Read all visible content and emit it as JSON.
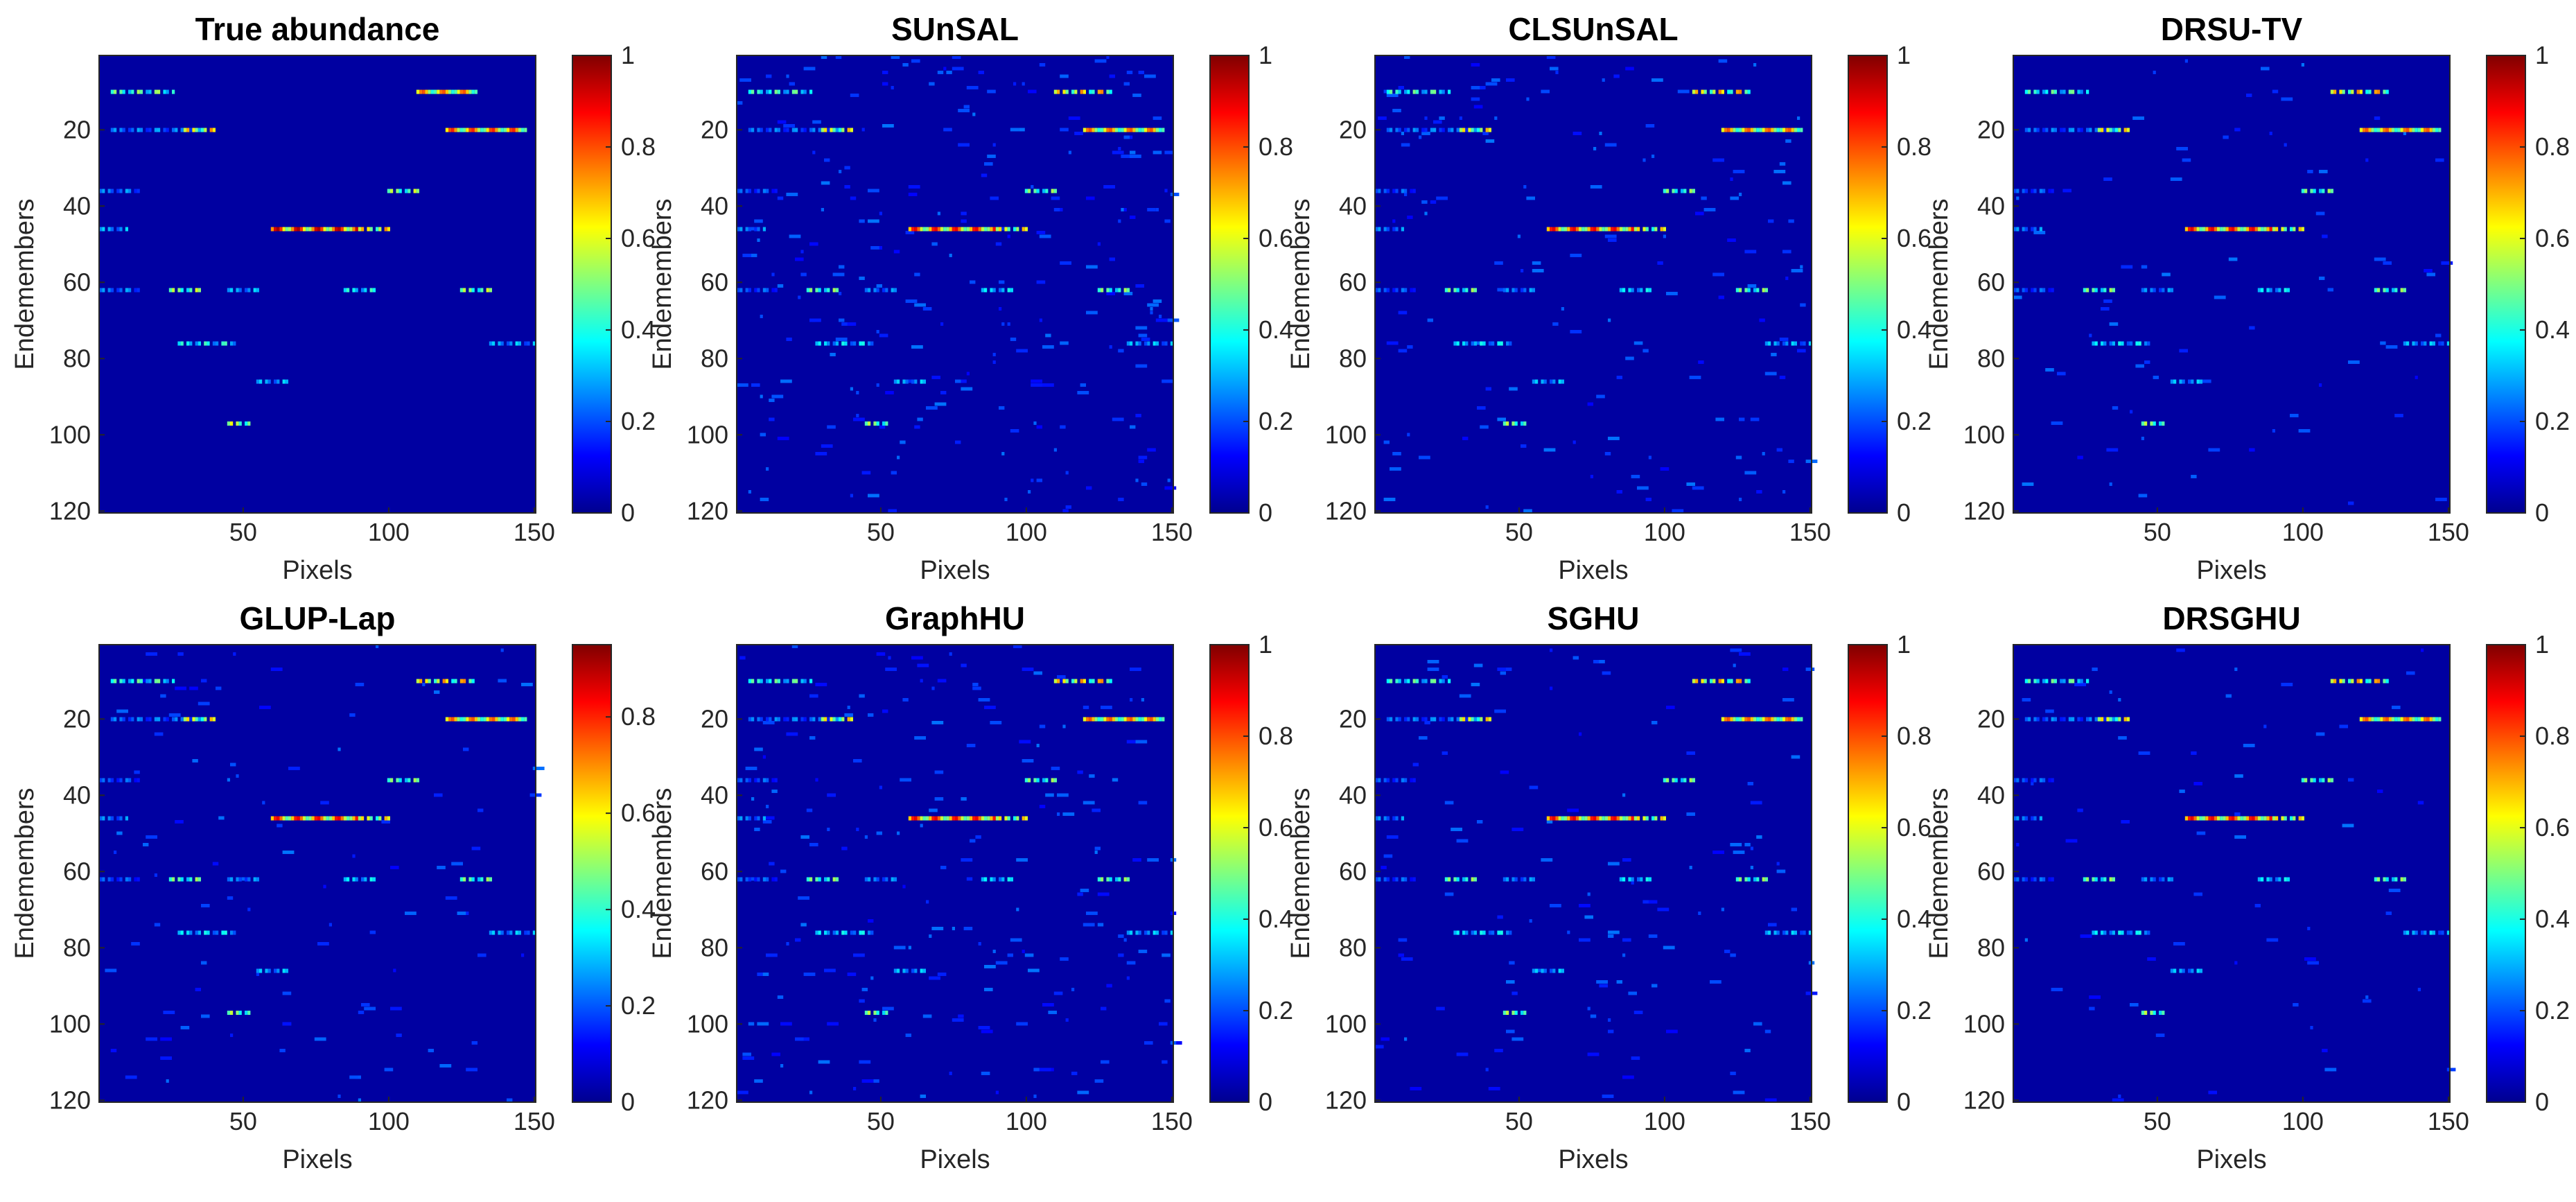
{
  "colors": {
    "background": "#000080",
    "colormap": "jet",
    "jet_stops": [
      "#00008f",
      "#0000ff",
      "#00ffff",
      "#ffff00",
      "#ff0000",
      "#800000"
    ]
  },
  "chart_data": [
    {
      "type": "heatmap",
      "title": "True abundance",
      "xlabel": "Pixels",
      "ylabel": "Endemembers",
      "xlim": [
        1,
        150
      ],
      "ylim": [
        1,
        120
      ],
      "xticks": [
        "50",
        "100",
        "150"
      ],
      "yticks": [
        "20",
        "40",
        "60",
        "80",
        "100",
        "120"
      ],
      "clim": [
        0,
        1
      ],
      "colorbar_ticks": [
        "0",
        "0.2",
        "0.4",
        "0.6",
        "0.8",
        "1"
      ],
      "segments": [
        [
          10,
          5,
          26,
          0.55
        ],
        [
          10,
          110,
          130,
          0.8
        ],
        [
          20,
          5,
          35,
          0.3
        ],
        [
          20,
          30,
          40,
          0.75
        ],
        [
          20,
          120,
          147,
          0.85
        ],
        [
          36,
          1,
          15,
          0.3
        ],
        [
          36,
          100,
          110,
          0.6
        ],
        [
          46,
          1,
          10,
          0.35
        ],
        [
          46,
          60,
          90,
          0.97
        ],
        [
          46,
          90,
          100,
          0.75
        ],
        [
          62,
          1,
          15,
          0.3
        ],
        [
          62,
          25,
          35,
          0.6
        ],
        [
          62,
          45,
          55,
          0.35
        ],
        [
          62,
          85,
          95,
          0.45
        ],
        [
          62,
          125,
          135,
          0.6
        ],
        [
          76,
          28,
          48,
          0.45
        ],
        [
          76,
          135,
          150,
          0.35
        ],
        [
          86,
          55,
          65,
          0.35
        ],
        [
          97,
          45,
          52,
          0.65
        ]
      ]
    },
    {
      "type": "heatmap",
      "title": "SUnSAL",
      "xlabel": "Pixels",
      "ylabel": "Endemembers",
      "xlim": [
        1,
        150
      ],
      "ylim": [
        1,
        120
      ],
      "xticks": [
        "50",
        "100",
        "150"
      ],
      "yticks": [
        "20",
        "40",
        "60",
        "80",
        "100",
        "120"
      ],
      "clim": [
        0,
        1
      ],
      "colorbar_ticks": [
        "0",
        "0.2",
        "0.4",
        "0.6",
        "0.8",
        "1"
      ],
      "segments": [
        [
          10,
          5,
          26,
          0.5
        ],
        [
          10,
          110,
          130,
          0.75
        ],
        [
          20,
          5,
          35,
          0.28
        ],
        [
          20,
          30,
          40,
          0.7
        ],
        [
          20,
          120,
          147,
          0.8
        ],
        [
          36,
          1,
          15,
          0.25
        ],
        [
          36,
          100,
          110,
          0.55
        ],
        [
          46,
          1,
          10,
          0.3
        ],
        [
          46,
          60,
          90,
          0.9
        ],
        [
          46,
          90,
          100,
          0.7
        ],
        [
          62,
          1,
          15,
          0.25
        ],
        [
          62,
          25,
          35,
          0.55
        ],
        [
          62,
          45,
          55,
          0.3
        ],
        [
          62,
          85,
          95,
          0.4
        ],
        [
          62,
          125,
          135,
          0.55
        ],
        [
          76,
          28,
          48,
          0.4
        ],
        [
          76,
          135,
          150,
          0.35
        ],
        [
          86,
          55,
          65,
          0.35
        ],
        [
          97,
          45,
          52,
          0.6
        ]
      ],
      "noise": 1.0
    },
    {
      "type": "heatmap",
      "title": "CLSUnSAL",
      "xlabel": "Pixels",
      "ylabel": "Endemembers",
      "xlim": [
        1,
        150
      ],
      "ylim": [
        1,
        120
      ],
      "xticks": [
        "50",
        "100",
        "150"
      ],
      "yticks": [
        "20",
        "40",
        "60",
        "80",
        "100",
        "120"
      ],
      "clim": [
        0,
        1
      ],
      "colorbar_ticks": [
        "0",
        "0.2",
        "0.4",
        "0.6",
        "0.8",
        "1"
      ],
      "segments": [
        [
          10,
          5,
          26,
          0.5
        ],
        [
          10,
          110,
          130,
          0.75
        ],
        [
          20,
          5,
          35,
          0.28
        ],
        [
          20,
          30,
          40,
          0.7
        ],
        [
          20,
          120,
          147,
          0.8
        ],
        [
          36,
          1,
          15,
          0.25
        ],
        [
          36,
          100,
          110,
          0.55
        ],
        [
          46,
          1,
          10,
          0.3
        ],
        [
          46,
          60,
          90,
          0.9
        ],
        [
          46,
          90,
          100,
          0.7
        ],
        [
          62,
          1,
          15,
          0.25
        ],
        [
          62,
          25,
          35,
          0.55
        ],
        [
          62,
          45,
          55,
          0.3
        ],
        [
          62,
          85,
          95,
          0.4
        ],
        [
          62,
          125,
          135,
          0.55
        ],
        [
          76,
          28,
          48,
          0.4
        ],
        [
          76,
          135,
          150,
          0.35
        ],
        [
          86,
          55,
          65,
          0.35
        ],
        [
          97,
          45,
          52,
          0.6
        ]
      ],
      "noise": 0.6
    },
    {
      "type": "heatmap",
      "title": "DRSU-TV",
      "xlabel": "Pixels",
      "ylabel": "Endemembers",
      "xlim": [
        1,
        150
      ],
      "ylim": [
        1,
        120
      ],
      "xticks": [
        "50",
        "100",
        "150"
      ],
      "yticks": [
        "20",
        "40",
        "60",
        "80",
        "100",
        "120"
      ],
      "clim": [
        0,
        1
      ],
      "colorbar_ticks": [
        "0",
        "0.2",
        "0.4",
        "0.6",
        "0.8",
        "1"
      ],
      "segments": [
        [
          10,
          5,
          26,
          0.5
        ],
        [
          10,
          110,
          130,
          0.75
        ],
        [
          20,
          5,
          35,
          0.28
        ],
        [
          20,
          30,
          40,
          0.7
        ],
        [
          20,
          120,
          147,
          0.8
        ],
        [
          36,
          1,
          15,
          0.25
        ],
        [
          36,
          100,
          110,
          0.55
        ],
        [
          46,
          1,
          10,
          0.3
        ],
        [
          46,
          60,
          90,
          0.9
        ],
        [
          46,
          90,
          100,
          0.7
        ],
        [
          62,
          1,
          15,
          0.25
        ],
        [
          62,
          25,
          35,
          0.55
        ],
        [
          62,
          45,
          55,
          0.3
        ],
        [
          62,
          85,
          95,
          0.4
        ],
        [
          62,
          125,
          135,
          0.55
        ],
        [
          76,
          28,
          48,
          0.4
        ],
        [
          76,
          135,
          150,
          0.35
        ],
        [
          86,
          55,
          65,
          0.35
        ],
        [
          97,
          45,
          52,
          0.6
        ]
      ],
      "noise": 0.3
    },
    {
      "type": "heatmap",
      "title": "GLUP-Lap",
      "xlabel": "Pixels",
      "ylabel": "Endemembers",
      "xlim": [
        1,
        150
      ],
      "ylim": [
        1,
        120
      ],
      "xticks": [
        "50",
        "100",
        "150"
      ],
      "yticks": [
        "20",
        "40",
        "60",
        "80",
        "100",
        "120"
      ],
      "clim": [
        0,
        0.95
      ],
      "colorbar_ticks": [
        "0",
        "0.2",
        "0.4",
        "0.6",
        "0.8"
      ],
      "segments": [
        [
          10,
          5,
          26,
          0.5
        ],
        [
          10,
          110,
          130,
          0.75
        ],
        [
          20,
          5,
          35,
          0.28
        ],
        [
          20,
          30,
          40,
          0.7
        ],
        [
          20,
          120,
          147,
          0.8
        ],
        [
          36,
          1,
          15,
          0.25
        ],
        [
          36,
          100,
          110,
          0.55
        ],
        [
          46,
          1,
          10,
          0.3
        ],
        [
          46,
          60,
          90,
          0.9
        ],
        [
          46,
          90,
          100,
          0.7
        ],
        [
          62,
          1,
          15,
          0.25
        ],
        [
          62,
          25,
          35,
          0.55
        ],
        [
          62,
          45,
          55,
          0.3
        ],
        [
          62,
          85,
          95,
          0.4
        ],
        [
          62,
          125,
          135,
          0.55
        ],
        [
          76,
          28,
          48,
          0.4
        ],
        [
          76,
          135,
          150,
          0.35
        ],
        [
          86,
          55,
          65,
          0.35
        ],
        [
          97,
          45,
          52,
          0.6
        ]
      ],
      "noise": 0.4
    },
    {
      "type": "heatmap",
      "title": "GraphHU",
      "xlabel": "Pixels",
      "ylabel": "Endemembers",
      "xlim": [
        1,
        150
      ],
      "ylim": [
        1,
        120
      ],
      "xticks": [
        "50",
        "100",
        "150"
      ],
      "yticks": [
        "20",
        "40",
        "60",
        "80",
        "100",
        "120"
      ],
      "clim": [
        0,
        1
      ],
      "colorbar_ticks": [
        "0",
        "0.2",
        "0.4",
        "0.6",
        "0.8",
        "1"
      ],
      "segments": [
        [
          10,
          5,
          26,
          0.5
        ],
        [
          10,
          110,
          130,
          0.75
        ],
        [
          20,
          5,
          35,
          0.28
        ],
        [
          20,
          30,
          40,
          0.7
        ],
        [
          20,
          120,
          147,
          0.8
        ],
        [
          36,
          1,
          15,
          0.25
        ],
        [
          36,
          100,
          110,
          0.55
        ],
        [
          46,
          1,
          10,
          0.3
        ],
        [
          46,
          60,
          90,
          0.9
        ],
        [
          46,
          90,
          100,
          0.7
        ],
        [
          62,
          1,
          15,
          0.25
        ],
        [
          62,
          25,
          35,
          0.55
        ],
        [
          62,
          45,
          55,
          0.3
        ],
        [
          62,
          85,
          95,
          0.4
        ],
        [
          62,
          125,
          135,
          0.55
        ],
        [
          76,
          28,
          48,
          0.4
        ],
        [
          76,
          135,
          150,
          0.35
        ],
        [
          86,
          55,
          65,
          0.35
        ],
        [
          97,
          45,
          52,
          0.6
        ]
      ],
      "noise": 0.8
    },
    {
      "type": "heatmap",
      "title": "SGHU",
      "xlabel": "Pixels",
      "ylabel": "Endemembers",
      "xlim": [
        1,
        150
      ],
      "ylim": [
        1,
        120
      ],
      "xticks": [
        "50",
        "100",
        "150"
      ],
      "yticks": [
        "20",
        "40",
        "60",
        "80",
        "100",
        "120"
      ],
      "clim": [
        0,
        1
      ],
      "colorbar_ticks": [
        "0",
        "0.2",
        "0.4",
        "0.6",
        "0.8",
        "1"
      ],
      "segments": [
        [
          10,
          5,
          26,
          0.5
        ],
        [
          10,
          110,
          130,
          0.75
        ],
        [
          20,
          5,
          35,
          0.28
        ],
        [
          20,
          30,
          40,
          0.7
        ],
        [
          20,
          120,
          147,
          0.8
        ],
        [
          36,
          1,
          15,
          0.25
        ],
        [
          36,
          100,
          110,
          0.55
        ],
        [
          46,
          1,
          10,
          0.3
        ],
        [
          46,
          60,
          90,
          0.9
        ],
        [
          46,
          90,
          100,
          0.7
        ],
        [
          62,
          1,
          15,
          0.25
        ],
        [
          62,
          25,
          35,
          0.55
        ],
        [
          62,
          45,
          55,
          0.3
        ],
        [
          62,
          85,
          95,
          0.4
        ],
        [
          62,
          125,
          135,
          0.55
        ],
        [
          76,
          28,
          48,
          0.4
        ],
        [
          76,
          135,
          150,
          0.35
        ],
        [
          86,
          55,
          65,
          0.35
        ],
        [
          97,
          45,
          52,
          0.6
        ]
      ],
      "noise": 0.5
    },
    {
      "type": "heatmap",
      "title": "DRSGHU",
      "xlabel": "Pixels",
      "ylabel": "Endemembers",
      "xlim": [
        1,
        150
      ],
      "ylim": [
        1,
        120
      ],
      "xticks": [
        "50",
        "100",
        "150"
      ],
      "yticks": [
        "20",
        "40",
        "60",
        "80",
        "100",
        "120"
      ],
      "clim": [
        0,
        1
      ],
      "colorbar_ticks": [
        "0",
        "0.2",
        "0.4",
        "0.6",
        "0.8",
        "1"
      ],
      "segments": [
        [
          10,
          5,
          26,
          0.5
        ],
        [
          10,
          110,
          130,
          0.75
        ],
        [
          20,
          5,
          35,
          0.28
        ],
        [
          20,
          30,
          40,
          0.7
        ],
        [
          20,
          120,
          147,
          0.8
        ],
        [
          36,
          1,
          15,
          0.25
        ],
        [
          36,
          100,
          110,
          0.55
        ],
        [
          46,
          1,
          10,
          0.3
        ],
        [
          46,
          60,
          90,
          0.9
        ],
        [
          46,
          90,
          100,
          0.7
        ],
        [
          62,
          1,
          15,
          0.25
        ],
        [
          62,
          25,
          35,
          0.55
        ],
        [
          62,
          45,
          55,
          0.3
        ],
        [
          62,
          85,
          95,
          0.4
        ],
        [
          62,
          125,
          135,
          0.55
        ],
        [
          76,
          28,
          48,
          0.4
        ],
        [
          76,
          135,
          150,
          0.35
        ],
        [
          86,
          55,
          65,
          0.35
        ],
        [
          97,
          45,
          52,
          0.6
        ]
      ],
      "noise": 0.25
    }
  ]
}
